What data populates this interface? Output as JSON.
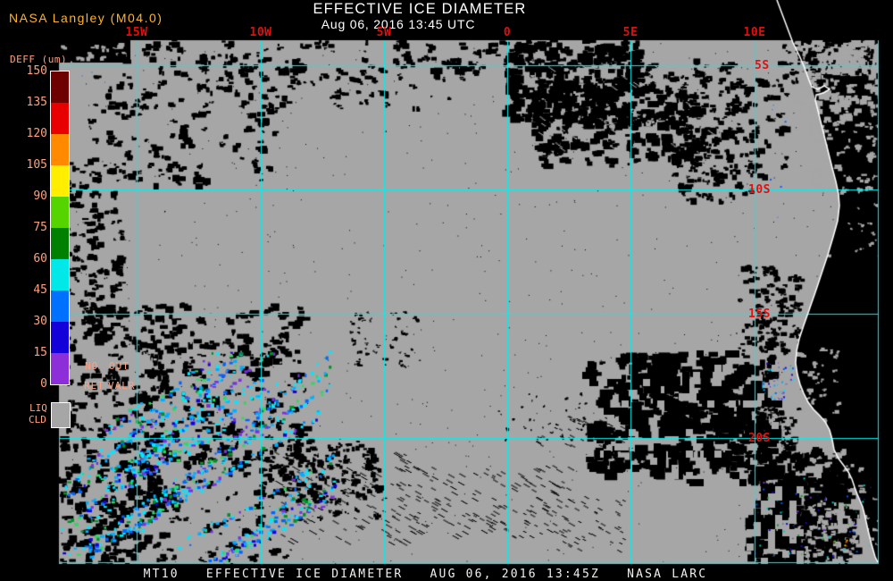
{
  "header": {
    "credit": "NASA Langley (M04.0)",
    "title": "EFFECTIVE ICE DIAMETER",
    "subtitle": "Aug 06, 2016 13:45 UTC"
  },
  "colorbar": {
    "unit_label": "DEFF (um)",
    "tick_labels": [
      "150",
      "135",
      "120",
      "105",
      "90",
      "75",
      "60",
      "45",
      "30",
      "15",
      "0"
    ],
    "segment_colors": [
      "#6E0000",
      "#E80000",
      "#FF8A00",
      "#FFEE00",
      "#55D400",
      "#008000",
      "#00E8E8",
      "#0070FF",
      "#1400D8",
      "#8C2FD8"
    ],
    "tick_label_color": "#FFA080",
    "flag_no": "NO",
    "flag_out": "OUT",
    "flag_ret": "RET",
    "flag_valr": "VALR",
    "liq_line1": "LIQ",
    "liq_line2": "CLD",
    "liq_swatch_color": "#A6A6A6"
  },
  "map": {
    "longitude_labels": [
      "15W",
      "10W",
      "5W",
      "0",
      "5E",
      "10E"
    ],
    "latitude_labels": [
      "5S",
      "10S",
      "15S",
      "20S"
    ],
    "grid_color": "#00F0F0",
    "coord_label_color": "#E01010",
    "cloud_color": "#A6A6A6",
    "no_data_color": "#000000",
    "coastline_color": "#FFFFFF"
  },
  "footer": {
    "text": "MT10   EFFECTIVE ICE DIAMETER   AUG 06, 2016 13:45Z   NASA LARC"
  }
}
